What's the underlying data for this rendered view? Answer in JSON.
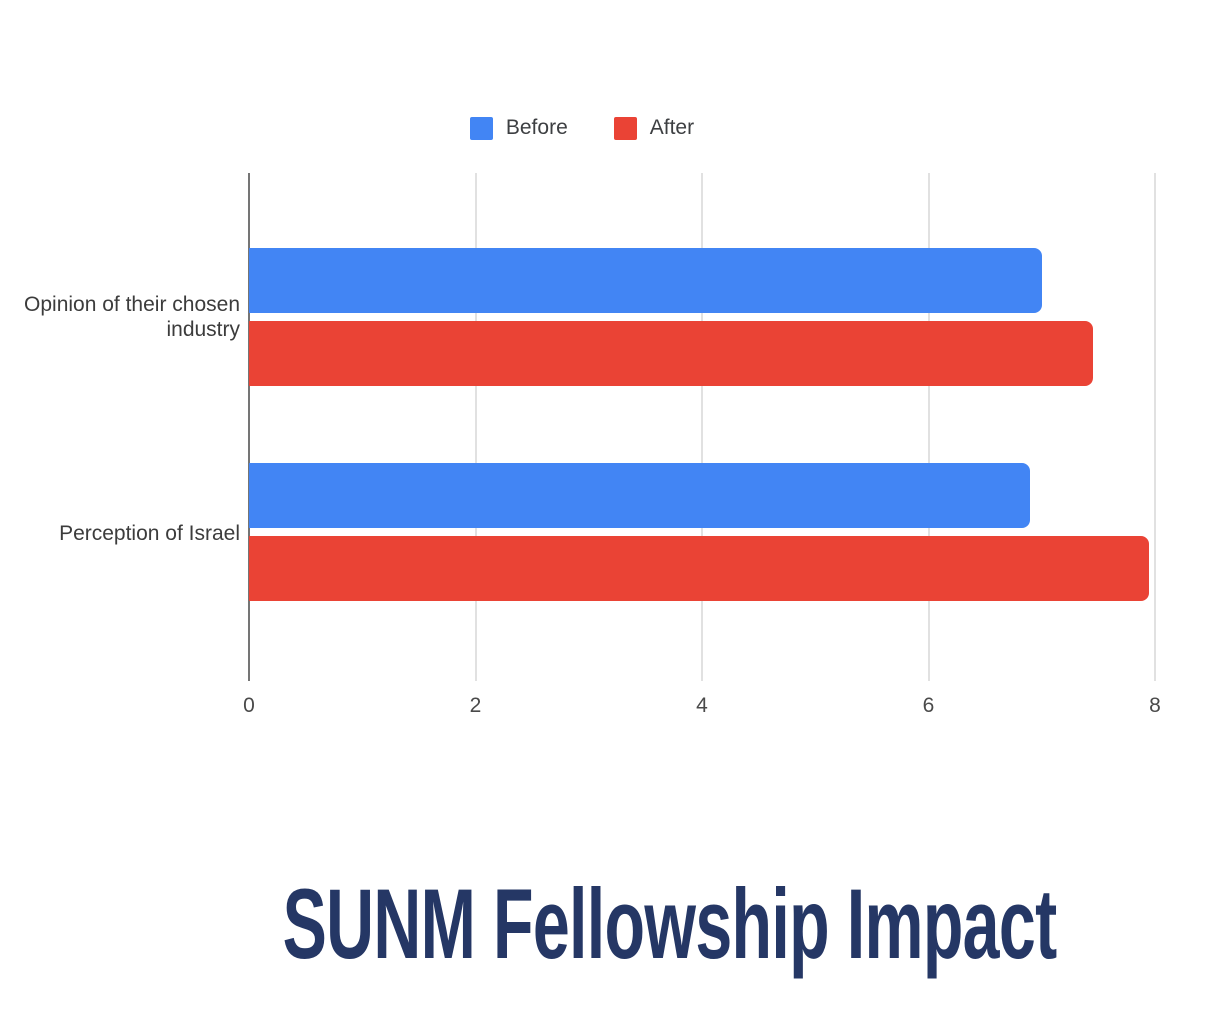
{
  "title": {
    "text": "SUNM Fellowship Impact",
    "color": "#253765"
  },
  "legend": {
    "items": [
      {
        "label": "Before",
        "color": "#4285F4"
      },
      {
        "label": "After",
        "color": "#EA4335"
      }
    ]
  },
  "chart_data": {
    "type": "bar",
    "orientation": "horizontal",
    "title": "SUNM Fellowship Impact",
    "categories": [
      "Opinion of their chosen industry",
      "Perception of Israel"
    ],
    "series": [
      {
        "name": "Before",
        "color": "#4285F4",
        "values": [
          7.0,
          6.9
        ]
      },
      {
        "name": "After",
        "color": "#EA4335",
        "values": [
          7.45,
          7.95
        ]
      }
    ],
    "xlim": [
      0,
      8
    ],
    "xticks": [
      "0",
      "2",
      "4",
      "6",
      "8"
    ],
    "xlabel": "",
    "ylabel": "",
    "legend_position": "top",
    "grid": true,
    "axis_color": "#757575",
    "gridline_color": "#E1E1E1",
    "background_color": "#FFFFFF"
  }
}
